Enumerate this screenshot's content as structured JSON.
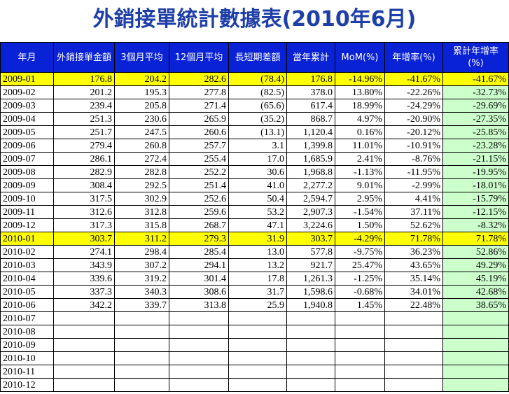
{
  "title": "外銷接單統計數據表(2010年6月)",
  "colors": {
    "header_bg": "#0a22d6",
    "highlight": "#ffff00",
    "cumulative_bg": "#ccffcc",
    "negative": "#ff0000",
    "title": "#1f3fa8"
  },
  "headers": [
    "年月",
    "外銷接單金額",
    "3個月平均",
    "12個月平均",
    "長短期差額",
    "當年累計",
    "MoM(%)",
    "年增率(%)",
    "累計年增率(%)"
  ],
  "rows": [
    {
      "cells": [
        "2009-01",
        "176.8",
        "204.2",
        "282.6",
        "(78.4)",
        "176.8",
        "-14.96%",
        "-41.67%",
        "-41.67%"
      ],
      "hl": true
    },
    {
      "cells": [
        "2009-02",
        "201.2",
        "195.3",
        "277.8",
        "(82.5)",
        "378.0",
        "13.80%",
        "-22.26%",
        "-32.73%"
      ]
    },
    {
      "cells": [
        "2009-03",
        "239.4",
        "205.8",
        "271.4",
        "(65.6)",
        "617.4",
        "18.99%",
        "-24.29%",
        "-29.69%"
      ]
    },
    {
      "cells": [
        "2009-04",
        "251.3",
        "230.6",
        "265.9",
        "(35.2)",
        "868.7",
        "4.97%",
        "-20.90%",
        "-27.35%"
      ]
    },
    {
      "cells": [
        "2009-05",
        "251.7",
        "247.5",
        "260.6",
        "(13.1)",
        "1,120.4",
        "0.16%",
        "-20.12%",
        "-25.85%"
      ]
    },
    {
      "cells": [
        "2009-06",
        "279.4",
        "260.8",
        "257.7",
        "3.1",
        "1,399.8",
        "11.01%",
        "-10.91%",
        "-23.28%"
      ]
    },
    {
      "cells": [
        "2009-07",
        "286.1",
        "272.4",
        "255.4",
        "17.0",
        "1,685.9",
        "2.41%",
        "-8.76%",
        "-21.15%"
      ]
    },
    {
      "cells": [
        "2009-08",
        "282.9",
        "282.8",
        "252.2",
        "30.6",
        "1,968.8",
        "-1.13%",
        "-11.95%",
        "-19.95%"
      ]
    },
    {
      "cells": [
        "2009-09",
        "308.4",
        "292.5",
        "251.4",
        "41.0",
        "2,277.2",
        "9.01%",
        "-2.99%",
        "-18.01%"
      ]
    },
    {
      "cells": [
        "2009-10",
        "317.5",
        "302.9",
        "252.6",
        "50.4",
        "2,594.7",
        "2.95%",
        "4.41%",
        "-15.79%"
      ]
    },
    {
      "cells": [
        "2009-11",
        "312.6",
        "312.8",
        "259.6",
        "53.2",
        "2,907.3",
        "-1.54%",
        "37.11%",
        "-12.15%"
      ]
    },
    {
      "cells": [
        "2009-12",
        "317.3",
        "315.8",
        "268.7",
        "47.1",
        "3,224.6",
        "1.50%",
        "52.62%",
        "-8.32%"
      ]
    },
    {
      "cells": [
        "2010-01",
        "303.7",
        "311.2",
        "279.3",
        "31.9",
        "303.7",
        "-4.29%",
        "71.78%",
        "71.78%"
      ],
      "hl": true
    },
    {
      "cells": [
        "2010-02",
        "274.1",
        "298.4",
        "285.4",
        "13.0",
        "577.8",
        "-9.75%",
        "36.23%",
        "52.86%"
      ]
    },
    {
      "cells": [
        "2010-03",
        "343.9",
        "307.2",
        "294.1",
        "13.2",
        "921.7",
        "25.47%",
        "43.65%",
        "49.29%"
      ]
    },
    {
      "cells": [
        "2010-04",
        "339.6",
        "319.2",
        "301.4",
        "17.8",
        "1,261.3",
        "-1.25%",
        "35.14%",
        "45.19%"
      ]
    },
    {
      "cells": [
        "2010-05",
        "337.3",
        "340.3",
        "308.6",
        "31.7",
        "1,598.6",
        "-0.68%",
        "34.01%",
        "42.68%"
      ]
    },
    {
      "cells": [
        "2010-06",
        "342.2",
        "339.7",
        "313.8",
        "25.9",
        "1,940.8",
        "1.45%",
        "22.48%",
        "38.65%"
      ]
    },
    {
      "cells": [
        "2010-07",
        "",
        "",
        "",
        "",
        "",
        "",
        "",
        ""
      ]
    },
    {
      "cells": [
        "2010-08",
        "",
        "",
        "",
        "",
        "",
        "",
        "",
        ""
      ]
    },
    {
      "cells": [
        "2010-09",
        "",
        "",
        "",
        "",
        "",
        "",
        "",
        ""
      ]
    },
    {
      "cells": [
        "2010-10",
        "",
        "",
        "",
        "",
        "",
        "",
        "",
        ""
      ]
    },
    {
      "cells": [
        "2010-11",
        "",
        "",
        "",
        "",
        "",
        "",
        "",
        ""
      ]
    },
    {
      "cells": [
        "2010-12",
        "",
        "",
        "",
        "",
        "",
        "",
        "",
        ""
      ]
    }
  ]
}
